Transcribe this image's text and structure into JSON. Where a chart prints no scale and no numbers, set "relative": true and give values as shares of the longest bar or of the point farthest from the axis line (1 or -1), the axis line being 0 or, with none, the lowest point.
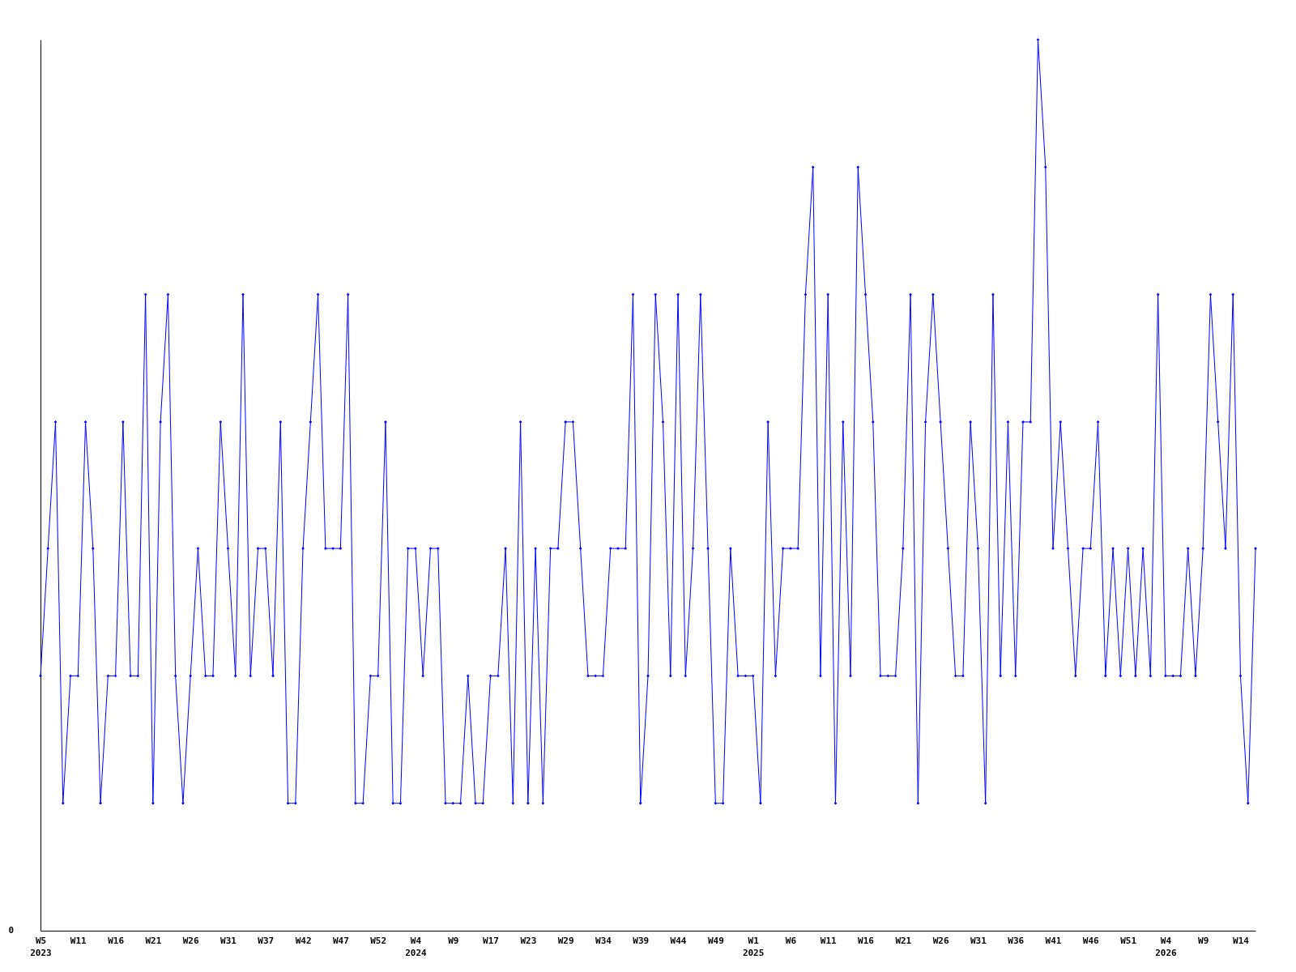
{
  "chart_data": {
    "type": "line",
    "relative": true,
    "color": "#0000ff",
    "marker": "diamond",
    "line_style": "solid",
    "grid": false,
    "annotations": [
      "0"
    ],
    "categories": [
      "W5\n2023",
      null,
      null,
      null,
      null,
      "W11",
      null,
      null,
      null,
      null,
      "W16",
      null,
      null,
      null,
      null,
      "W21",
      null,
      null,
      null,
      null,
      "W26",
      null,
      null,
      null,
      null,
      "W31",
      null,
      null,
      null,
      null,
      "W37",
      null,
      null,
      null,
      null,
      "W42",
      null,
      null,
      null,
      null,
      "W47",
      null,
      null,
      null,
      null,
      "W52",
      null,
      null,
      null,
      null,
      "W4\n2024",
      null,
      null,
      null,
      null,
      "W9",
      null,
      null,
      null,
      null,
      "W17",
      null,
      null,
      null,
      null,
      "W23",
      null,
      null,
      null,
      null,
      "W29",
      null,
      null,
      null,
      null,
      "W34",
      null,
      null,
      null,
      null,
      "W39",
      null,
      null,
      null,
      null,
      "W44",
      null,
      null,
      null,
      null,
      "W49",
      null,
      null,
      null,
      null,
      "W1\n2025",
      null,
      null,
      null,
      null,
      "W6",
      null,
      null,
      null,
      null,
      "W11",
      null,
      null,
      null,
      null,
      "W16",
      null,
      null,
      null,
      null,
      "W21",
      null,
      null,
      null,
      null,
      "W26",
      null,
      null,
      null,
      null,
      "W31",
      null,
      null,
      null,
      null,
      "W36",
      null,
      null,
      null,
      null,
      "W41",
      null,
      null,
      null,
      null,
      "W46",
      null,
      null,
      null,
      null,
      "W51",
      null,
      null,
      null,
      null,
      "W4\n2026",
      null,
      null,
      null,
      null,
      "W9",
      null,
      null,
      null,
      null,
      "W14",
      null,
      null
    ],
    "values": [
      0.286,
      0.429,
      0.571,
      0.143,
      0.286,
      0.286,
      0.571,
      0.429,
      0.143,
      0.286,
      0.286,
      0.571,
      0.286,
      0.286,
      0.714,
      0.143,
      0.571,
      0.714,
      0.286,
      0.143,
      0.286,
      0.429,
      0.286,
      0.286,
      0.571,
      0.429,
      0.286,
      0.714,
      0.286,
      0.429,
      0.429,
      0.286,
      0.571,
      0.143,
      0.143,
      0.429,
      0.571,
      0.714,
      0.429,
      0.429,
      0.429,
      0.714,
      0.143,
      0.143,
      0.286,
      0.286,
      0.571,
      0.143,
      0.143,
      0.429,
      0.429,
      0.286,
      0.429,
      0.429,
      0.143,
      0.143,
      0.143,
      0.286,
      0.143,
      0.143,
      0.286,
      0.286,
      0.429,
      0.143,
      0.571,
      0.143,
      0.429,
      0.143,
      0.429,
      0.429,
      0.571,
      0.571,
      0.429,
      0.286,
      0.286,
      0.286,
      0.429,
      0.429,
      0.429,
      0.714,
      0.143,
      0.286,
      0.714,
      0.571,
      0.286,
      0.714,
      0.286,
      0.429,
      0.714,
      0.429,
      0.143,
      0.143,
      0.429,
      0.286,
      0.286,
      0.286,
      0.143,
      0.571,
      0.286,
      0.429,
      0.429,
      0.429,
      0.714,
      0.857,
      0.286,
      0.714,
      0.143,
      0.571,
      0.286,
      0.857,
      0.714,
      0.571,
      0.286,
      0.286,
      0.286,
      0.429,
      0.714,
      0.143,
      0.571,
      0.714,
      0.571,
      0.429,
      0.286,
      0.286,
      0.571,
      0.429,
      0.143,
      0.714,
      0.286,
      0.571,
      0.286,
      0.571,
      0.571,
      1,
      0.857,
      0.429,
      0.571,
      0.429,
      0.286,
      0.429,
      0.429,
      0.571,
      0.286,
      0.429,
      0.286,
      0.429,
      0.286,
      0.429,
      0.286,
      0.714,
      0.286,
      0.286,
      0.286,
      0.429,
      0.286,
      0.429,
      0.714,
      0.571,
      0.429,
      0.714,
      0.286,
      0.143,
      0.429
    ]
  }
}
